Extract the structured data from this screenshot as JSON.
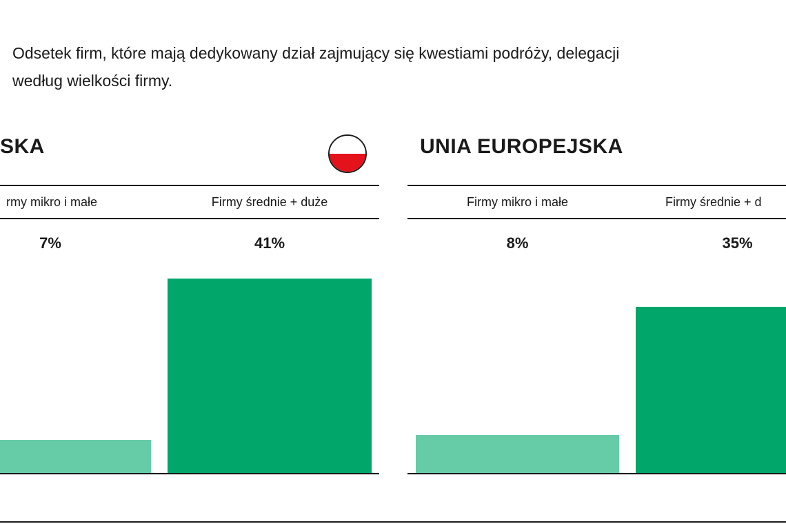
{
  "subtitle": {
    "line1": "Odsetek firm, które mają dedykowany dział zajmujący się kwestiami podróży, delegacji",
    "line2": "według wielkości firmy."
  },
  "colors": {
    "light_green": "#66cba7",
    "dark_green": "#00a66a",
    "flag_white": "#ffffff",
    "flag_red": "#e3121b"
  },
  "chart_data": [
    {
      "type": "bar",
      "title": "SKA",
      "categories": [
        "rmy mikro i małe",
        "Firmy średnie + duże"
      ],
      "values": [
        7,
        41
      ],
      "value_labels": [
        "7%",
        "41%"
      ],
      "ylim": [
        0,
        41
      ],
      "icon": "poland-flag-icon"
    },
    {
      "type": "bar",
      "title": "UNIA EUROPEJSKA",
      "categories": [
        "Firmy mikro i małe",
        "Firmy średnie + d"
      ],
      "values": [
        8,
        35
      ],
      "value_labels": [
        "8%",
        "35%"
      ],
      "ylim": [
        0,
        41
      ]
    }
  ]
}
